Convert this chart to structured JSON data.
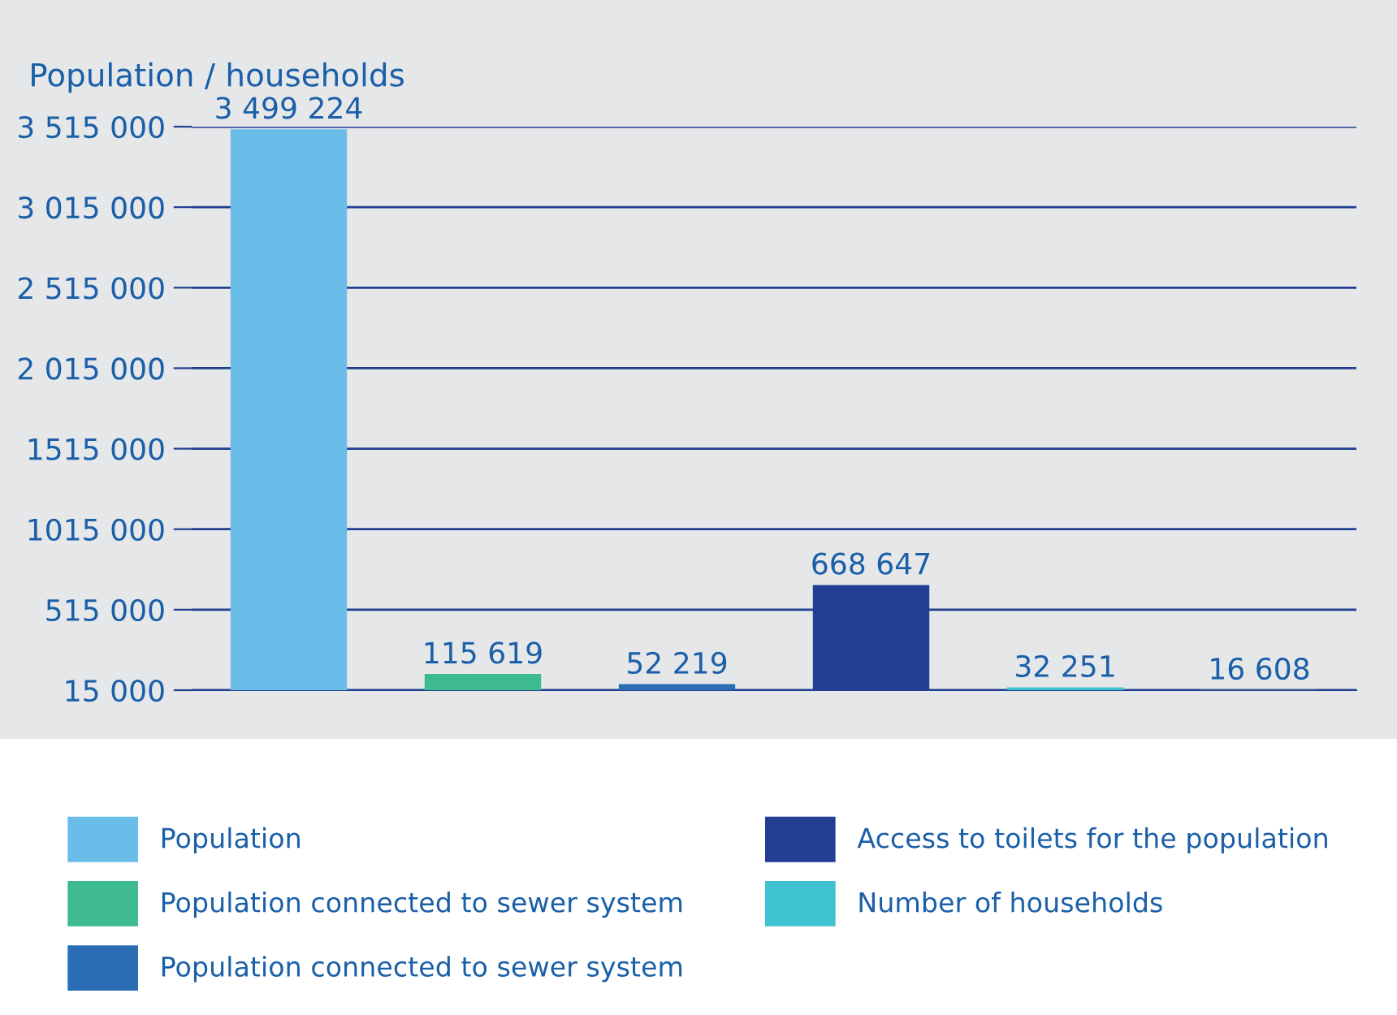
{
  "chart_data": {
    "type": "bar",
    "ylabel": "Population / households",
    "categories": [
      null,
      null,
      null,
      null,
      null,
      null
    ],
    "series": [
      {
        "name": "Population",
        "color": "#6bbde9",
        "values": [
          3499224,
          null,
          null,
          null,
          null,
          null
        ]
      },
      {
        "name": "Population connected to sewer system",
        "color": "#3dbb8e",
        "values": [
          null,
          115619,
          null,
          null,
          null,
          null
        ]
      },
      {
        "name": "Population connected to sewer system",
        "color": "#2a6db5",
        "values": [
          null,
          null,
          52219,
          null,
          null,
          null
        ]
      },
      {
        "name": "Access to toilets for the population",
        "color": "#233f94",
        "values": [
          null,
          null,
          null,
          668647,
          null,
          null
        ]
      },
      {
        "name": "Number of households",
        "color": "#3ec2cf",
        "values": [
          null,
          null,
          null,
          null,
          32251,
          null
        ]
      },
      {
        "color": "#c5d36a",
        "values": [
          null,
          null,
          null,
          null,
          null,
          16608
        ]
      }
    ],
    "ylim": [
      15000,
      3515000
    ],
    "yticks": [
      {
        "value": 15000,
        "label": "15 000"
      },
      {
        "value": 515000,
        "label": "515 000"
      },
      {
        "value": 1015000,
        "label": "1015 000"
      },
      {
        "value": 1515000,
        "label": "1515 000"
      },
      {
        "value": 2015000,
        "label": "2 015 000"
      },
      {
        "value": 2515000,
        "label": "2 515 000"
      },
      {
        "value": 3015000,
        "label": "3 015 000"
      },
      {
        "value": 3515000,
        "label": "3 515 000"
      }
    ],
    "grid": "y",
    "legend": "bottom",
    "data_labels": true
  }
}
